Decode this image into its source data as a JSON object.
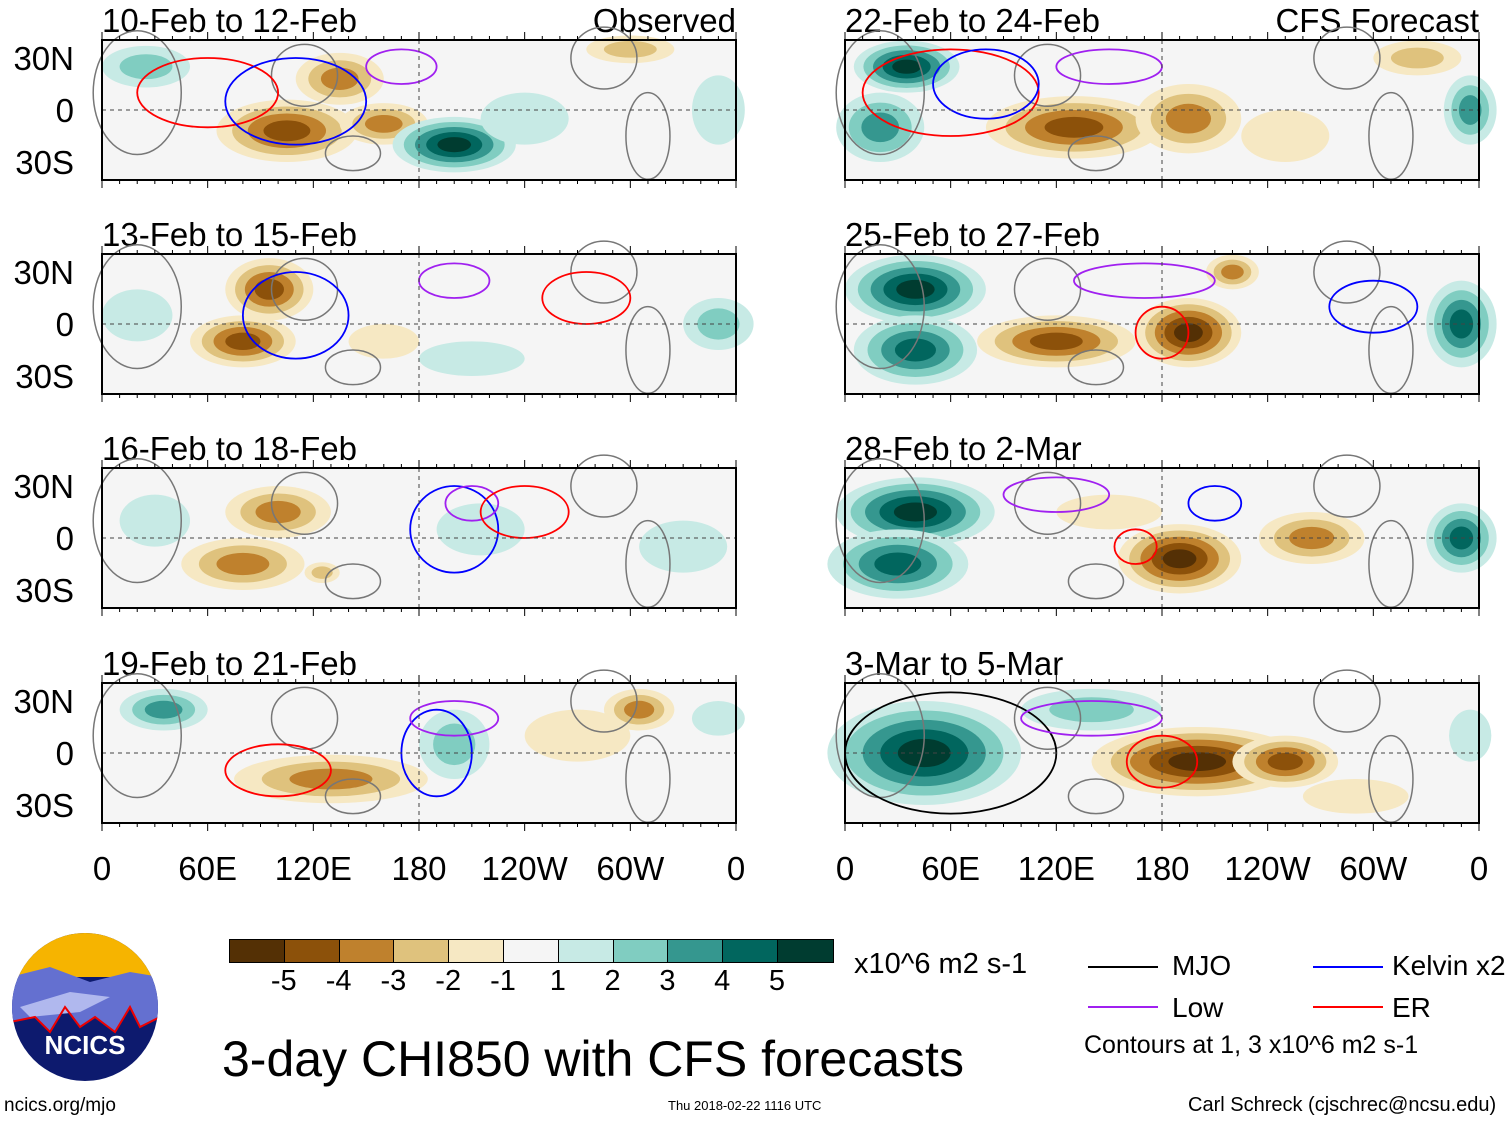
{
  "labels": {
    "observed": "Observed",
    "forecast": "CFS Forecast"
  },
  "lat_ticks": [
    "30N",
    "0",
    "30S"
  ],
  "lon_ticks": [
    "0",
    "60E",
    "120E",
    "180",
    "120W",
    "60W",
    "0"
  ],
  "colorbar": {
    "colors": [
      "#543005",
      "#8c510a",
      "#bf812d",
      "#dfc27d",
      "#f6e8c3",
      "#f5f5f5",
      "#c7eae5",
      "#80cdc1",
      "#35978f",
      "#01665e",
      "#003c30"
    ],
    "labels": [
      "-5",
      "-4",
      "-3",
      "-2",
      "-1",
      "1",
      "2",
      "3",
      "4",
      "5"
    ],
    "units": "x10^6 m2 s-1"
  },
  "legend": {
    "mjo": "MJO",
    "kelvin": "Kelvin x2",
    "low": "Low",
    "er": "ER",
    "note": "Contours at 1, 3 x10^6 m2 s-1",
    "colors": {
      "mjo": "#000000",
      "kelvin": "#0000ff",
      "low": "#a020f0",
      "er": "#ff0000"
    }
  },
  "title": "3-day CHI850 with CFS forecasts",
  "footer": {
    "url": "ncics.org/mjo",
    "timestamp": "Thu 2018-02-22 1116 UTC",
    "author": "Carl Schreck (cjschrec@ncsu.edu)"
  },
  "logo": {
    "text": "NCICS"
  },
  "panels": [
    {
      "title": "10-Feb to 12-Feb",
      "blobs": [
        [
          105,
          -12,
          40,
          18,
          -4
        ],
        [
          135,
          18,
          25,
          15,
          -3
        ],
        [
          160,
          -8,
          25,
          12,
          -3
        ],
        [
          200,
          -20,
          35,
          16,
          5
        ],
        [
          25,
          25,
          25,
          12,
          2
        ],
        [
          300,
          35,
          25,
          8,
          -2
        ],
        [
          240,
          -5,
          25,
          15,
          1
        ],
        [
          350,
          0,
          15,
          20,
          1
        ]
      ],
      "contours": [
        [
          "er",
          60,
          10,
          40,
          20
        ],
        [
          "kelvin",
          110,
          5,
          40,
          25
        ],
        [
          "low",
          170,
          25,
          20,
          10
        ]
      ]
    },
    {
      "title": "13-Feb to 15-Feb",
      "blobs": [
        [
          95,
          20,
          25,
          18,
          -4
        ],
        [
          80,
          -10,
          30,
          15,
          -4
        ],
        [
          20,
          5,
          20,
          15,
          1
        ],
        [
          210,
          -20,
          30,
          10,
          1
        ],
        [
          350,
          0,
          20,
          15,
          2
        ],
        [
          160,
          -10,
          20,
          10,
          -1
        ]
      ],
      "contours": [
        [
          "kelvin",
          110,
          5,
          30,
          25
        ],
        [
          "low",
          200,
          25,
          20,
          10
        ],
        [
          "er",
          275,
          15,
          25,
          15
        ]
      ]
    },
    {
      "title": "16-Feb to 18-Feb",
      "blobs": [
        [
          100,
          15,
          30,
          15,
          -3
        ],
        [
          80,
          -15,
          35,
          15,
          -3
        ],
        [
          125,
          -20,
          10,
          6,
          -2
        ],
        [
          215,
          5,
          25,
          15,
          1
        ],
        [
          330,
          -5,
          25,
          15,
          1
        ],
        [
          30,
          10,
          20,
          15,
          1
        ]
      ],
      "contours": [
        [
          "kelvin",
          200,
          5,
          25,
          25
        ],
        [
          "low",
          210,
          20,
          15,
          10
        ],
        [
          "er",
          240,
          15,
          25,
          15
        ]
      ]
    },
    {
      "title": "19-Feb to 21-Feb",
      "blobs": [
        [
          35,
          25,
          25,
          12,
          3
        ],
        [
          130,
          -15,
          55,
          14,
          -3
        ],
        [
          200,
          5,
          20,
          20,
          2
        ],
        [
          305,
          25,
          20,
          12,
          -3
        ],
        [
          270,
          10,
          30,
          15,
          -1
        ],
        [
          350,
          20,
          15,
          10,
          1
        ]
      ],
      "contours": [
        [
          "er",
          100,
          -10,
          30,
          15
        ],
        [
          "kelvin",
          190,
          0,
          20,
          25
        ],
        [
          "low",
          200,
          20,
          25,
          10
        ]
      ]
    },
    {
      "title": "22-Feb to 24-Feb",
      "blobs": [
        [
          35,
          25,
          30,
          15,
          5
        ],
        [
          20,
          -10,
          25,
          20,
          3
        ],
        [
          130,
          -10,
          50,
          18,
          -4
        ],
        [
          195,
          -5,
          30,
          20,
          -3
        ],
        [
          325,
          30,
          25,
          10,
          -2
        ],
        [
          355,
          0,
          15,
          20,
          3
        ],
        [
          250,
          -15,
          25,
          15,
          -1
        ]
      ],
      "contours": [
        [
          "er",
          60,
          10,
          50,
          25
        ],
        [
          "kelvin",
          80,
          15,
          30,
          20
        ],
        [
          "low",
          150,
          25,
          30,
          10
        ]
      ]
    },
    {
      "title": "25-Feb to 27-Feb",
      "blobs": [
        [
          40,
          20,
          40,
          20,
          5
        ],
        [
          40,
          -15,
          35,
          20,
          4
        ],
        [
          120,
          -10,
          45,
          15,
          -4
        ],
        [
          195,
          -5,
          30,
          20,
          -5
        ],
        [
          220,
          30,
          15,
          10,
          -3
        ],
        [
          350,
          0,
          20,
          25,
          4
        ]
      ],
      "contours": [
        [
          "er",
          180,
          -5,
          15,
          15
        ],
        [
          "low",
          170,
          25,
          40,
          10
        ],
        [
          "kelvin",
          300,
          10,
          25,
          15
        ]
      ]
    },
    {
      "title": "28-Feb to 2-Mar",
      "blobs": [
        [
          40,
          15,
          45,
          20,
          5
        ],
        [
          30,
          -15,
          40,
          20,
          4
        ],
        [
          190,
          -12,
          35,
          20,
          -5
        ],
        [
          265,
          0,
          30,
          15,
          -3
        ],
        [
          150,
          15,
          30,
          10,
          -1
        ],
        [
          350,
          0,
          20,
          20,
          4
        ]
      ],
      "contours": [
        [
          "er",
          165,
          -5,
          12,
          10
        ],
        [
          "kelvin",
          210,
          20,
          15,
          10
        ],
        [
          "low",
          120,
          25,
          30,
          10
        ]
      ]
    },
    {
      "title": "3-Mar to 5-Mar",
      "blobs": [
        [
          45,
          0,
          55,
          30,
          5
        ],
        [
          140,
          25,
          40,
          12,
          2
        ],
        [
          200,
          -5,
          60,
          20,
          -5
        ],
        [
          250,
          -5,
          30,
          15,
          -4
        ],
        [
          290,
          -25,
          30,
          10,
          -1
        ],
        [
          355,
          10,
          12,
          15,
          1
        ]
      ],
      "contours": [
        [
          "mjo",
          60,
          0,
          60,
          35
        ],
        [
          "er",
          180,
          -5,
          20,
          15
        ],
        [
          "low",
          140,
          20,
          40,
          10
        ]
      ]
    }
  ]
}
